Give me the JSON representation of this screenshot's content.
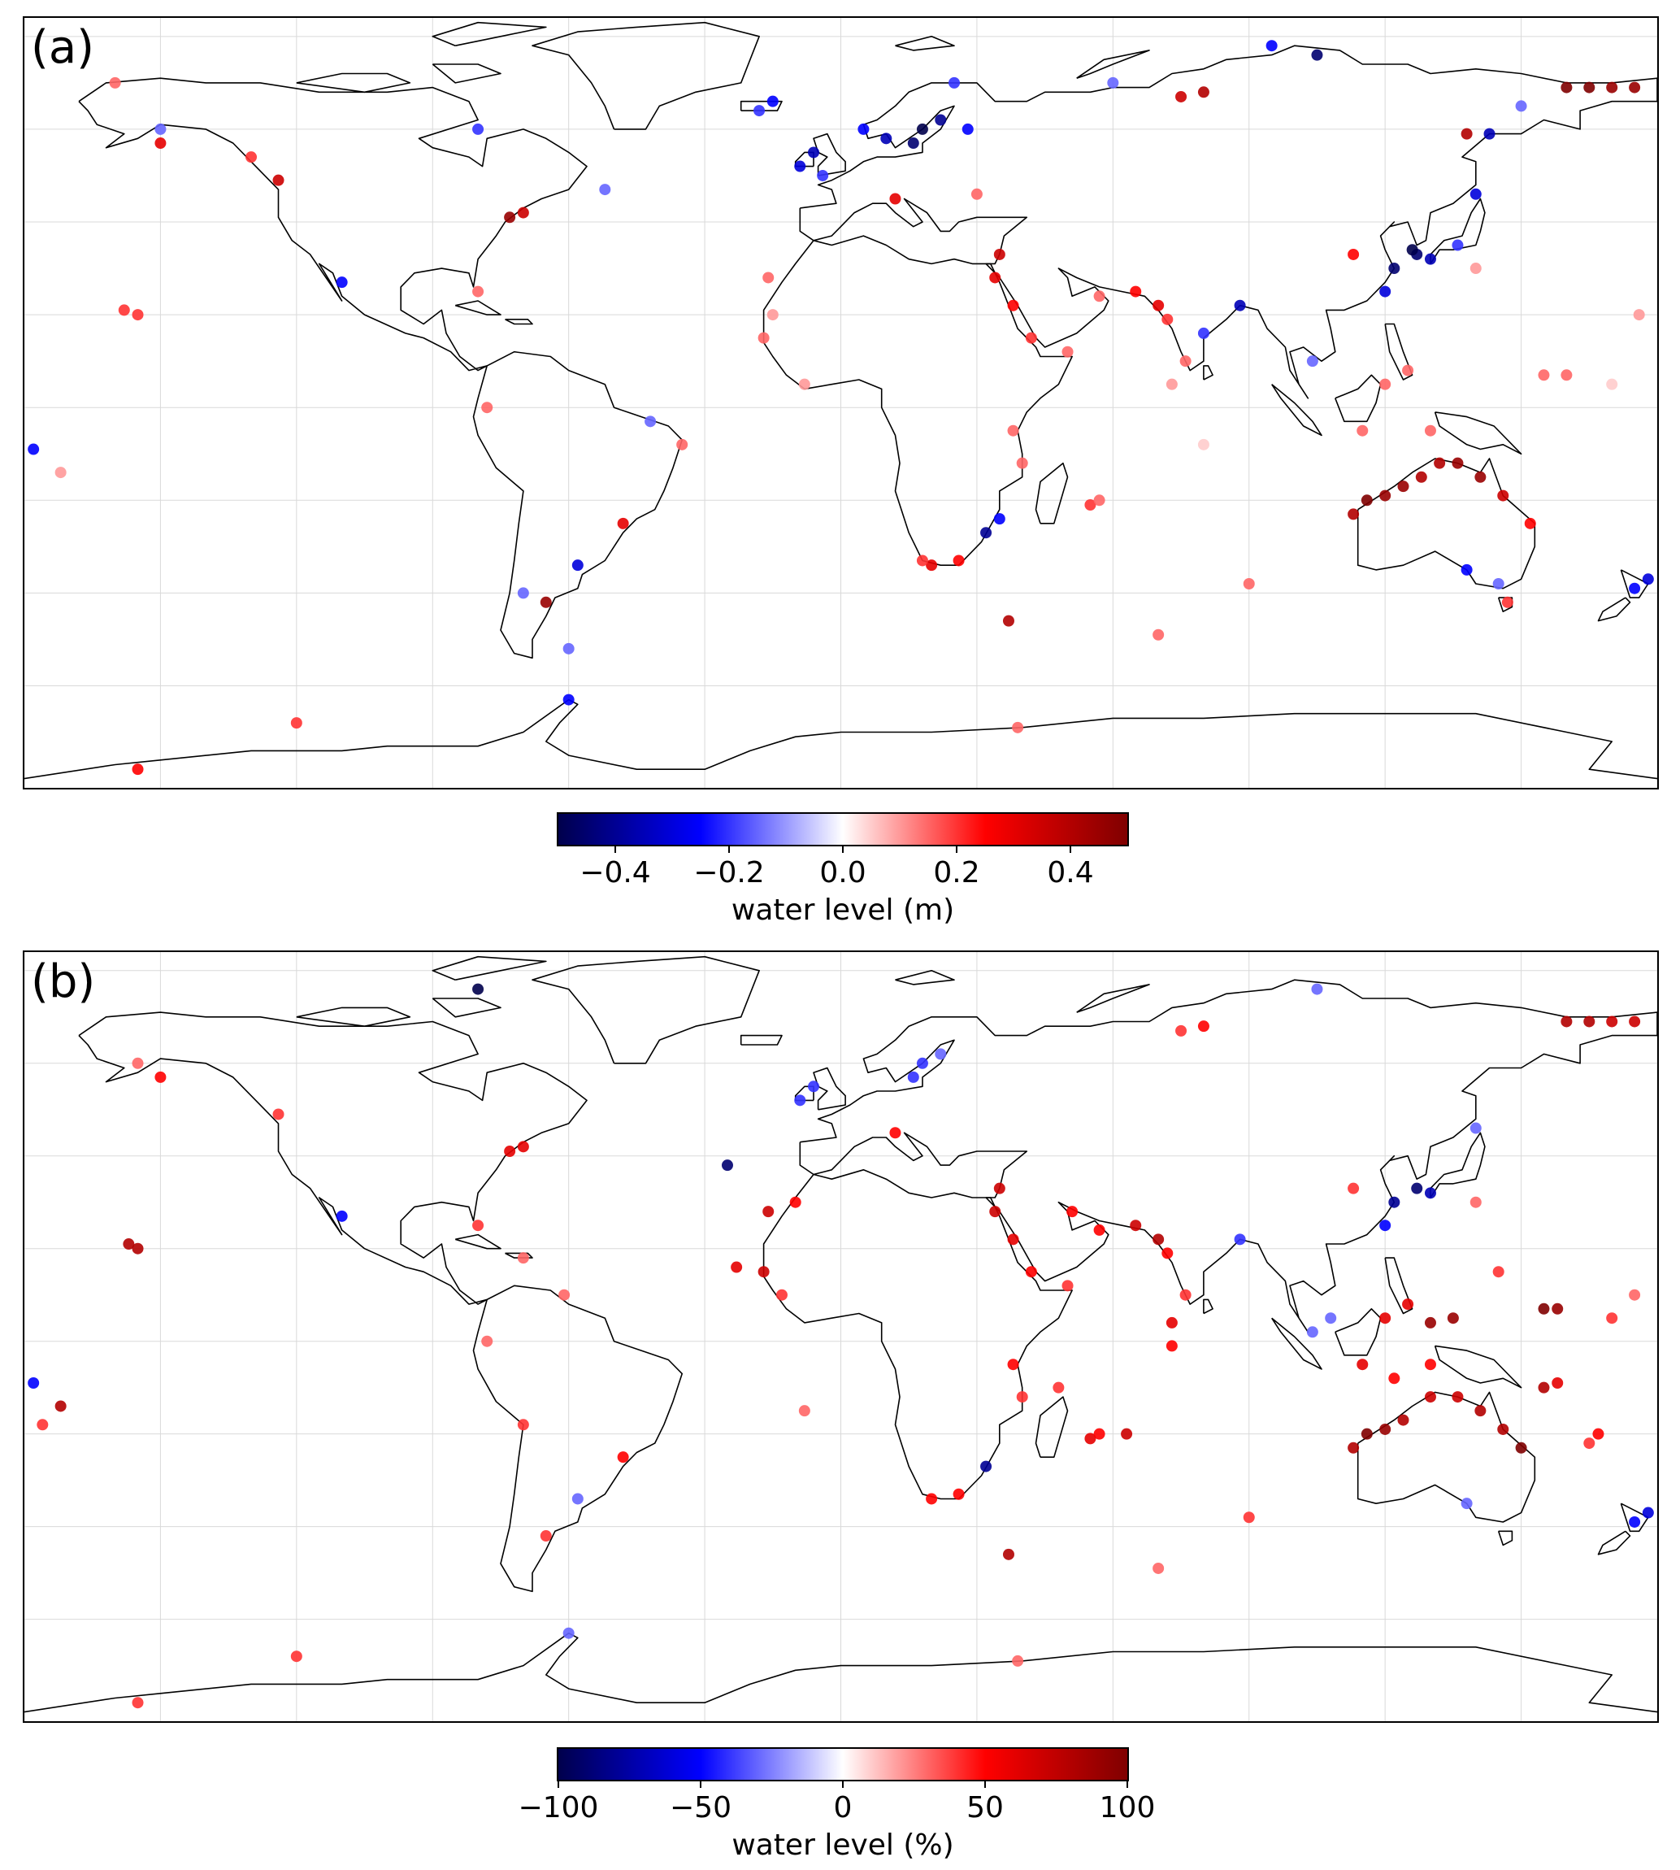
{
  "panels": [
    {
      "label": "(a)",
      "colorbar": {
        "title": "water level (m)",
        "range": [
          -0.5,
          0.5
        ],
        "ticks": [
          {
            "value": -0.4,
            "label": "−0.4"
          },
          {
            "value": -0.2,
            "label": "−0.2"
          },
          {
            "value": 0.0,
            "label": "0.0"
          },
          {
            "value": 0.2,
            "label": "0.2"
          },
          {
            "value": 0.4,
            "label": "0.4"
          }
        ]
      },
      "points": [
        {
          "lon": 18,
          "lat": 60,
          "v": -1.0
        },
        {
          "lon": 16,
          "lat": 57,
          "v": -0.9
        },
        {
          "lon": 22,
          "lat": 62,
          "v": -0.8
        },
        {
          "lon": 10,
          "lat": 58,
          "v": -0.7
        },
        {
          "lon": -6,
          "lat": 55,
          "v": -0.7
        },
        {
          "lon": -9,
          "lat": 52,
          "v": -0.6
        },
        {
          "lon": -4,
          "lat": 50,
          "v": -0.4
        },
        {
          "lon": -18,
          "lat": 64,
          "v": -0.4
        },
        {
          "lon": 28,
          "lat": 60,
          "v": -0.5
        },
        {
          "lon": 5,
          "lat": 60,
          "v": -0.5
        },
        {
          "lon": 127,
          "lat": 33,
          "v": -0.9
        },
        {
          "lon": 122,
          "lat": 30,
          "v": -0.9
        },
        {
          "lon": 130,
          "lat": 32,
          "v": -0.7
        },
        {
          "lon": 126,
          "lat": 34,
          "v": -1.0
        },
        {
          "lon": 120,
          "lat": 25,
          "v": -0.6
        },
        {
          "lon": 136,
          "lat": 35,
          "v": -0.4
        },
        {
          "lon": 140,
          "lat": 46,
          "v": -0.6
        },
        {
          "lon": 143,
          "lat": 59,
          "v": -0.7
        },
        {
          "lon": 32,
          "lat": -27,
          "v": -0.8
        },
        {
          "lon": 35,
          "lat": -24,
          "v": -0.5
        },
        {
          "lon": 175,
          "lat": -39,
          "v": -0.5
        },
        {
          "lon": 178,
          "lat": -37,
          "v": -0.6
        },
        {
          "lon": 138,
          "lat": -35,
          "v": -0.5
        },
        {
          "lon": 145,
          "lat": -38,
          "v": -0.3
        },
        {
          "lon": 88,
          "lat": 22,
          "v": -0.7
        },
        {
          "lon": 80,
          "lat": 16,
          "v": -0.4
        },
        {
          "lon": -70,
          "lat": -40,
          "v": -0.3
        },
        {
          "lon": -58,
          "lat": -34,
          "v": -0.6
        },
        {
          "lon": -60,
          "lat": -63,
          "v": -0.5
        },
        {
          "lon": -178,
          "lat": -9,
          "v": -0.5
        },
        {
          "lon": -110,
          "lat": 27,
          "v": -0.5
        },
        {
          "lon": -80,
          "lat": 60,
          "v": -0.4
        },
        {
          "lon": -150,
          "lat": 60,
          "v": -0.3
        },
        {
          "lon": -42,
          "lat": -3,
          "v": -0.3
        },
        {
          "lon": 60,
          "lat": 70,
          "v": -0.3
        },
        {
          "lon": 25,
          "lat": 70,
          "v": -0.4
        },
        {
          "lon": 105,
          "lat": 76,
          "v": -0.9
        },
        {
          "lon": 95,
          "lat": 78,
          "v": -0.5
        },
        {
          "lon": -52,
          "lat": 47,
          "v": -0.3
        },
        {
          "lon": 104,
          "lat": 10,
          "v": -0.3
        },
        {
          "lon": 138,
          "lat": 59,
          "v": 0.8
        },
        {
          "lon": 113,
          "lat": 33,
          "v": 0.5
        },
        {
          "lon": 160,
          "lat": 69,
          "v": 1.0
        },
        {
          "lon": 165,
          "lat": 69,
          "v": 1.0
        },
        {
          "lon": 170,
          "lat": 69,
          "v": 0.9
        },
        {
          "lon": 175,
          "lat": 69,
          "v": 0.9
        },
        {
          "lon": 80,
          "lat": 68,
          "v": 0.8
        },
        {
          "lon": 75,
          "lat": 67,
          "v": 0.7
        },
        {
          "lon": 116,
          "lat": -20,
          "v": 1.0
        },
        {
          "lon": 120,
          "lat": -19,
          "v": 0.9
        },
        {
          "lon": 124,
          "lat": -17,
          "v": 0.9
        },
        {
          "lon": 128,
          "lat": -15,
          "v": 0.8
        },
        {
          "lon": 132,
          "lat": -12,
          "v": 0.8
        },
        {
          "lon": 136,
          "lat": -12,
          "v": 0.9
        },
        {
          "lon": 141,
          "lat": -15,
          "v": 0.9
        },
        {
          "lon": 146,
          "lat": -19,
          "v": 0.7
        },
        {
          "lon": 152,
          "lat": -25,
          "v": 0.5
        },
        {
          "lon": 113,
          "lat": -23,
          "v": 0.8
        },
        {
          "lon": 34,
          "lat": 28,
          "v": 0.6
        },
        {
          "lon": 38,
          "lat": 22,
          "v": 0.5
        },
        {
          "lon": 42,
          "lat": 15,
          "v": 0.4
        },
        {
          "lon": 50,
          "lat": 12,
          "v": 0.3
        },
        {
          "lon": 57,
          "lat": 24,
          "v": 0.3
        },
        {
          "lon": 65,
          "lat": 25,
          "v": 0.5
        },
        {
          "lon": 70,
          "lat": 22,
          "v": 0.6
        },
        {
          "lon": 72,
          "lat": 19,
          "v": 0.4
        },
        {
          "lon": 76,
          "lat": 10,
          "v": 0.3
        },
        {
          "lon": 35,
          "lat": 33,
          "v": 0.7
        },
        {
          "lon": 12,
          "lat": 45,
          "v": 0.6
        },
        {
          "lon": 30,
          "lat": 46,
          "v": 0.3
        },
        {
          "lon": -70,
          "lat": 42,
          "v": 0.7
        },
        {
          "lon": -73,
          "lat": 41,
          "v": 0.9
        },
        {
          "lon": -124,
          "lat": 49,
          "v": 0.7
        },
        {
          "lon": -130,
          "lat": 54,
          "v": 0.4
        },
        {
          "lon": -150,
          "lat": 57,
          "v": 0.6
        },
        {
          "lon": -65,
          "lat": -42,
          "v": 0.9
        },
        {
          "lon": -48,
          "lat": -25,
          "v": 0.6
        },
        {
          "lon": 20,
          "lat": -34,
          "v": 0.6
        },
        {
          "lon": 26,
          "lat": -33,
          "v": 0.5
        },
        {
          "lon": 18,
          "lat": -33,
          "v": 0.4
        },
        {
          "lon": 38,
          "lat": -5,
          "v": 0.3
        },
        {
          "lon": 40,
          "lat": -12,
          "v": 0.3
        },
        {
          "lon": 55,
          "lat": -21,
          "v": 0.4
        },
        {
          "lon": 57,
          "lat": -20,
          "v": 0.3
        },
        {
          "lon": 37,
          "lat": -46,
          "v": 0.8
        },
        {
          "lon": 70,
          "lat": -49,
          "v": 0.3
        },
        {
          "lon": 73,
          "lat": 5,
          "v": 0.2
        },
        {
          "lon": 140,
          "lat": 30,
          "v": 0.2
        },
        {
          "lon": 155,
          "lat": 7,
          "v": 0.3
        },
        {
          "lon": 160,
          "lat": 7,
          "v": 0.3
        },
        {
          "lon": 120,
          "lat": 5,
          "v": 0.3
        },
        {
          "lon": 125,
          "lat": 8,
          "v": 0.3
        },
        {
          "lon": 115,
          "lat": -5,
          "v": 0.3
        },
        {
          "lon": 130,
          "lat": -5,
          "v": 0.3
        },
        {
          "lon": -155,
          "lat": 20,
          "v": 0.4
        },
        {
          "lon": -158,
          "lat": 21,
          "v": 0.4
        },
        {
          "lon": -172,
          "lat": -14,
          "v": 0.2
        },
        {
          "lon": -16,
          "lat": 28,
          "v": 0.3
        },
        {
          "lon": -17,
          "lat": 15,
          "v": 0.3
        },
        {
          "lon": -8,
          "lat": 5,
          "v": 0.2
        },
        {
          "lon": -15,
          "lat": 20,
          "v": 0.2
        },
        {
          "lon": -35,
          "lat": -8,
          "v": 0.3
        },
        {
          "lon": -80,
          "lat": 25,
          "v": 0.3
        },
        {
          "lon": -78,
          "lat": 0,
          "v": 0.3
        },
        {
          "lon": -160,
          "lat": 70,
          "v": 0.3
        },
        {
          "lon": -15,
          "lat": 66,
          "v": -0.5
        },
        {
          "lon": -60,
          "lat": -52,
          "v": -0.3
        },
        {
          "lon": -120,
          "lat": -68,
          "v": 0.4
        },
        {
          "lon": -155,
          "lat": -78,
          "v": 0.5
        },
        {
          "lon": 39,
          "lat": -69,
          "v": 0.3
        },
        {
          "lon": 80,
          "lat": -8,
          "v": 0.1
        },
        {
          "lon": 90,
          "lat": -38,
          "v": 0.3
        },
        {
          "lon": 147,
          "lat": -42,
          "v": 0.4
        },
        {
          "lon": 150,
          "lat": 65,
          "v": -0.3
        },
        {
          "lon": 170,
          "lat": 5,
          "v": 0.1
        },
        {
          "lon": 176,
          "lat": 20,
          "v": 0.2
        }
      ]
    },
    {
      "label": "(b)",
      "colorbar": {
        "title": "water level (%)",
        "range": [
          -100,
          100
        ],
        "ticks": [
          {
            "value": -100,
            "label": "−100"
          },
          {
            "value": -50,
            "label": "−50"
          },
          {
            "value": 0,
            "label": "0"
          },
          {
            "value": 50,
            "label": "50"
          },
          {
            "value": 100,
            "label": "100"
          }
        ]
      },
      "points": [
        {
          "lon": -80,
          "lat": 76,
          "v": -1.0
        },
        {
          "lon": -25,
          "lat": 38,
          "v": -0.9
        },
        {
          "lon": 127,
          "lat": 33,
          "v": -0.9
        },
        {
          "lon": 122,
          "lat": 30,
          "v": -0.8
        },
        {
          "lon": 130,
          "lat": 32,
          "v": -0.7
        },
        {
          "lon": 120,
          "lat": 25,
          "v": -0.5
        },
        {
          "lon": 32,
          "lat": -27,
          "v": -0.8
        },
        {
          "lon": 175,
          "lat": -39,
          "v": -0.5
        },
        {
          "lon": 178,
          "lat": -37,
          "v": -0.6
        },
        {
          "lon": -178,
          "lat": -9,
          "v": -0.5
        },
        {
          "lon": -110,
          "lat": 27,
          "v": -0.5
        },
        {
          "lon": 18,
          "lat": 60,
          "v": -0.4
        },
        {
          "lon": 16,
          "lat": 57,
          "v": -0.4
        },
        {
          "lon": -6,
          "lat": 55,
          "v": -0.4
        },
        {
          "lon": -9,
          "lat": 52,
          "v": -0.4
        },
        {
          "lon": 22,
          "lat": 62,
          "v": -0.3
        },
        {
          "lon": 88,
          "lat": 22,
          "v": -0.4
        },
        {
          "lon": 105,
          "lat": 76,
          "v": -0.3
        },
        {
          "lon": 108,
          "lat": 5,
          "v": -0.3
        },
        {
          "lon": 104,
          "lat": 2,
          "v": -0.3
        },
        {
          "lon": 140,
          "lat": 46,
          "v": -0.3
        },
        {
          "lon": 138,
          "lat": -35,
          "v": -0.3
        },
        {
          "lon": -60,
          "lat": -63,
          "v": -0.3
        },
        {
          "lon": -58,
          "lat": -34,
          "v": -0.3
        },
        {
          "lon": 34,
          "lat": 28,
          "v": 0.7
        },
        {
          "lon": 38,
          "lat": 22,
          "v": 0.6
        },
        {
          "lon": 42,
          "lat": 15,
          "v": 0.5
        },
        {
          "lon": 50,
          "lat": 12,
          "v": 0.4
        },
        {
          "lon": 57,
          "lat": 24,
          "v": 0.5
        },
        {
          "lon": 65,
          "lat": 25,
          "v": 0.7
        },
        {
          "lon": 70,
          "lat": 22,
          "v": 0.8
        },
        {
          "lon": 72,
          "lat": 19,
          "v": 0.5
        },
        {
          "lon": 76,
          "lat": 10,
          "v": 0.4
        },
        {
          "lon": 51,
          "lat": 28,
          "v": 0.5
        },
        {
          "lon": -16,
          "lat": 28,
          "v": 0.7
        },
        {
          "lon": -17,
          "lat": 15,
          "v": 0.7
        },
        {
          "lon": -23,
          "lat": 16,
          "v": 0.6
        },
        {
          "lon": -10,
          "lat": 30,
          "v": 0.5
        },
        {
          "lon": -13,
          "lat": 10,
          "v": 0.4
        },
        {
          "lon": 73,
          "lat": 4,
          "v": 0.6
        },
        {
          "lon": 73,
          "lat": -1,
          "v": 0.5
        },
        {
          "lon": 116,
          "lat": -20,
          "v": 1.0
        },
        {
          "lon": 120,
          "lat": -19,
          "v": 0.9
        },
        {
          "lon": 124,
          "lat": -17,
          "v": 0.8
        },
        {
          "lon": 130,
          "lat": -12,
          "v": 0.7
        },
        {
          "lon": 136,
          "lat": -12,
          "v": 0.7
        },
        {
          "lon": 141,
          "lat": -15,
          "v": 0.8
        },
        {
          "lon": 146,
          "lat": -19,
          "v": 0.8
        },
        {
          "lon": 150,
          "lat": -23,
          "v": 1.0
        },
        {
          "lon": 113,
          "lat": -23,
          "v": 0.8
        },
        {
          "lon": 120,
          "lat": 5,
          "v": 0.6
        },
        {
          "lon": 125,
          "lat": 8,
          "v": 0.6
        },
        {
          "lon": 115,
          "lat": -5,
          "v": 0.6
        },
        {
          "lon": 130,
          "lat": -5,
          "v": 0.5
        },
        {
          "lon": 122,
          "lat": -8,
          "v": 0.5
        },
        {
          "lon": 135,
          "lat": 5,
          "v": 0.9
        },
        {
          "lon": 130,
          "lat": 4,
          "v": 0.9
        },
        {
          "lon": 155,
          "lat": 7,
          "v": 1.0
        },
        {
          "lon": 158,
          "lat": 7,
          "v": 0.9
        },
        {
          "lon": 155,
          "lat": -10,
          "v": 0.8
        },
        {
          "lon": 158,
          "lat": -9,
          "v": 0.6
        },
        {
          "lon": 167,
          "lat": -20,
          "v": 0.5
        },
        {
          "lon": 165,
          "lat": -22,
          "v": 0.4
        },
        {
          "lon": 145,
          "lat": 15,
          "v": 0.4
        },
        {
          "lon": 170,
          "lat": 5,
          "v": 0.4
        },
        {
          "lon": 175,
          "lat": 10,
          "v": 0.3
        },
        {
          "lon": 55,
          "lat": -21,
          "v": 0.6
        },
        {
          "lon": 57,
          "lat": -20,
          "v": 0.5
        },
        {
          "lon": 48,
          "lat": -10,
          "v": 0.4
        },
        {
          "lon": 40,
          "lat": -12,
          "v": 0.4
        },
        {
          "lon": 38,
          "lat": -5,
          "v": 0.5
        },
        {
          "lon": 20,
          "lat": -34,
          "v": 0.5
        },
        {
          "lon": 26,
          "lat": -33,
          "v": 0.5
        },
        {
          "lon": 37,
          "lat": -46,
          "v": 0.8
        },
        {
          "lon": 70,
          "lat": -49,
          "v": 0.3
        },
        {
          "lon": 63,
          "lat": -20,
          "v": 0.7
        },
        {
          "lon": 35,
          "lat": 33,
          "v": 0.7
        },
        {
          "lon": 12,
          "lat": 45,
          "v": 0.5
        },
        {
          "lon": -70,
          "lat": 42,
          "v": 0.6
        },
        {
          "lon": -73,
          "lat": 41,
          "v": 0.6
        },
        {
          "lon": -124,
          "lat": 49,
          "v": 0.4
        },
        {
          "lon": -150,
          "lat": 57,
          "v": 0.5
        },
        {
          "lon": -155,
          "lat": 20,
          "v": 0.8
        },
        {
          "lon": -157,
          "lat": 21,
          "v": 0.8
        },
        {
          "lon": -172,
          "lat": -14,
          "v": 0.8
        },
        {
          "lon": -176,
          "lat": -18,
          "v": 0.4
        },
        {
          "lon": -80,
          "lat": 25,
          "v": 0.4
        },
        {
          "lon": -70,
          "lat": 18,
          "v": 0.3
        },
        {
          "lon": -78,
          "lat": 0,
          "v": 0.3
        },
        {
          "lon": -61,
          "lat": 10,
          "v": 0.3
        },
        {
          "lon": -48,
          "lat": -25,
          "v": 0.5
        },
        {
          "lon": -70,
          "lat": -18,
          "v": 0.4
        },
        {
          "lon": -65,
          "lat": -42,
          "v": 0.4
        },
        {
          "lon": -8,
          "lat": -15,
          "v": 0.3
        },
        {
          "lon": 160,
          "lat": 69,
          "v": 0.8
        },
        {
          "lon": 165,
          "lat": 69,
          "v": 0.8
        },
        {
          "lon": 170,
          "lat": 69,
          "v": 0.7
        },
        {
          "lon": 175,
          "lat": 69,
          "v": 0.7
        },
        {
          "lon": 80,
          "lat": 68,
          "v": 0.5
        },
        {
          "lon": 75,
          "lat": 67,
          "v": 0.4
        },
        {
          "lon": 113,
          "lat": 33,
          "v": 0.4
        },
        {
          "lon": 140,
          "lat": 30,
          "v": 0.3
        },
        {
          "lon": -120,
          "lat": -68,
          "v": 0.4
        },
        {
          "lon": -155,
          "lat": -78,
          "v": 0.4
        },
        {
          "lon": 39,
          "lat": -69,
          "v": 0.3
        },
        {
          "lon": 90,
          "lat": -38,
          "v": 0.4
        },
        {
          "lon": -155,
          "lat": 60,
          "v": 0.3
        }
      ]
    }
  ]
}
